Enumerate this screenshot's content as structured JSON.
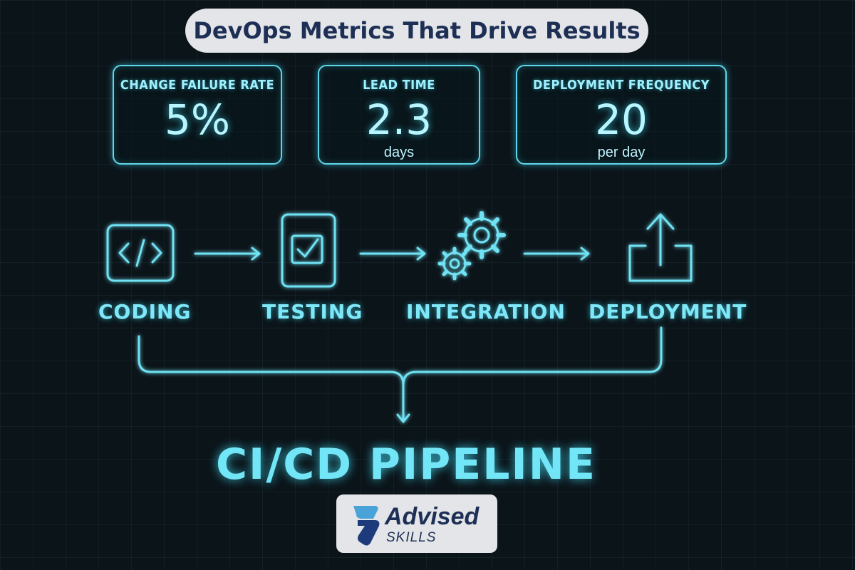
{
  "title": "DevOps Metrics That Drive Results",
  "metrics": [
    {
      "label": "CHANGE FAILURE RATE",
      "value": "5%",
      "unit": ""
    },
    {
      "label": "LEAD TIME",
      "value": "2.3",
      "unit": "days"
    },
    {
      "label": "DEPLOYMENT FREQUENCY",
      "value": "20",
      "unit": "per day"
    }
  ],
  "stages": [
    {
      "label": "CODING",
      "icon": "code-icon"
    },
    {
      "label": "TESTING",
      "icon": "checkbox-icon"
    },
    {
      "label": "INTEGRATION",
      "icon": "gears-icon"
    },
    {
      "label": "DEPLOYMENT",
      "icon": "upload-icon"
    }
  ],
  "pipeline_title": "CI/CD PIPELINE",
  "logo": {
    "name": "Advised",
    "sub": "SKILLS"
  },
  "colors": {
    "accent": "#5fd7ea",
    "background": "#0b1419",
    "navy": "#1d2f55",
    "pill": "#e3e5e8"
  }
}
